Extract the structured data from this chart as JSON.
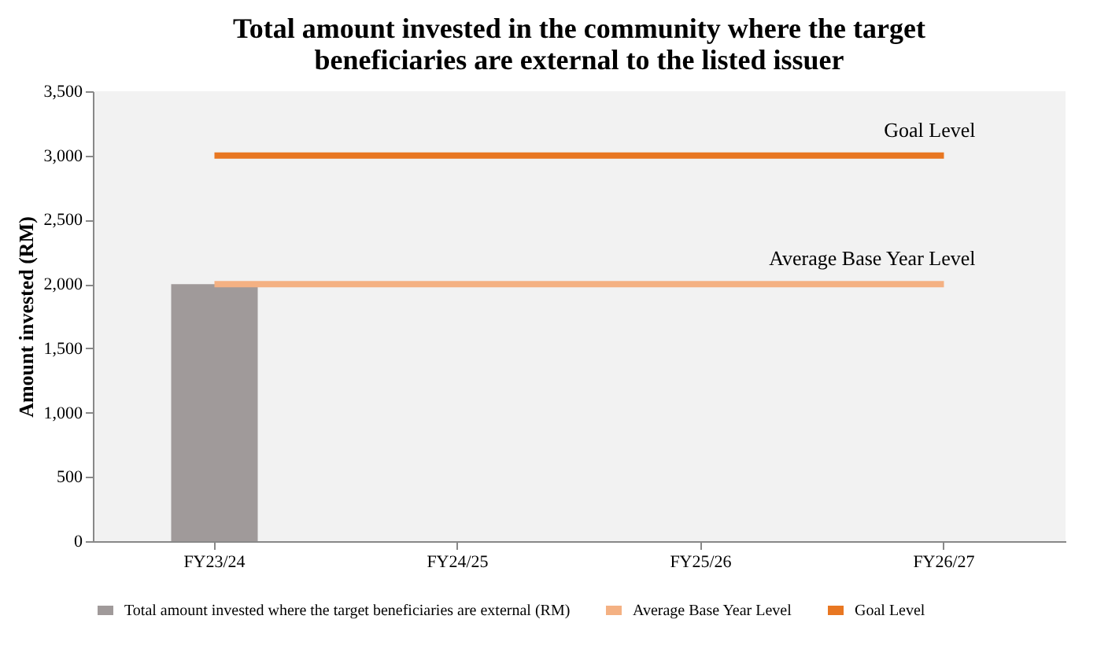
{
  "chart_data": {
    "type": "bar",
    "title": "Total amount invested in the community where the target beneficiaries are external to the listed issuer",
    "ylabel": "Amount invested (RM)",
    "categories": [
      "FY23/24",
      "FY24/25",
      "FY25/26",
      "FY26/27"
    ],
    "series": [
      {
        "name": "Total amount invested where the target beneficiaries are external (RM)",
        "color": "#a09a9a",
        "values": [
          2000,
          null,
          null,
          null
        ]
      },
      {
        "name": "Average Base Year Level",
        "type": "line",
        "color": "#f4b183",
        "values": [
          2000,
          2000,
          2000,
          2000
        ]
      },
      {
        "name": "Goal Level",
        "type": "line",
        "color": "#e87722",
        "values": [
          3000,
          3000,
          3000,
          3000
        ]
      }
    ],
    "ylim": [
      0,
      3500
    ],
    "yticks": [
      0,
      500,
      {
        "value": 1000,
        "label": "1,000"
      },
      {
        "value": 1500,
        "label": "1,500"
      },
      {
        "value": 2000,
        "label": "2,000"
      },
      {
        "value": 2500,
        "label": "2,500"
      },
      {
        "value": 3000,
        "label": "3,000"
      },
      {
        "value": 3500,
        "label": "3,500"
      }
    ],
    "grid": false,
    "legend": "bottom",
    "annotations": [
      {
        "text": "Goal Level",
        "x": "FY26/27",
        "y": 3000
      },
      {
        "text": "Average Base Year Level",
        "x": "FY26/27",
        "y": 2000
      }
    ]
  }
}
